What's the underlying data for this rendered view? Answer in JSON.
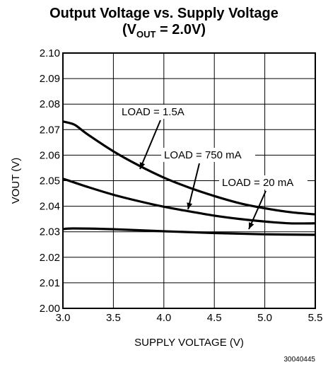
{
  "chart_data": {
    "type": "line",
    "title": "Output Voltage vs. Supply Voltage",
    "subtitle_prefix": "(V",
    "subtitle_sub": "OUT",
    "subtitle_suffix": " = 2.0V)",
    "xlabel": "SUPPLY VOLTAGE (V)",
    "ylabel": "VOUT (V)",
    "xlim": [
      3.0,
      5.5
    ],
    "ylim": [
      2.0,
      2.1
    ],
    "x_ticks": [
      3.0,
      3.5,
      4.0,
      4.5,
      5.0,
      5.5
    ],
    "x_tick_labels": [
      "3.0",
      "3.5",
      "4.0",
      "4.5",
      "5.0",
      "5.5"
    ],
    "y_ticks": [
      2.0,
      2.01,
      2.02,
      2.03,
      2.04,
      2.05,
      2.06,
      2.07,
      2.08,
      2.09,
      2.1
    ],
    "y_tick_labels": [
      "2.00",
      "2.01",
      "2.02",
      "2.03",
      "2.04",
      "2.05",
      "2.06",
      "2.07",
      "2.08",
      "2.09",
      "2.10"
    ],
    "grid": true,
    "series": [
      {
        "name": "LOAD = 1.5A",
        "x": [
          3.0,
          3.1,
          3.15,
          3.25,
          3.5,
          3.75,
          4.0,
          4.25,
          4.5,
          4.75,
          5.0,
          5.25,
          5.5
        ],
        "y": [
          2.0732,
          2.0722,
          2.071,
          2.068,
          2.0615,
          2.056,
          2.0512,
          2.0473,
          2.044,
          2.0412,
          2.0392,
          2.0377,
          2.0368
        ]
      },
      {
        "name": "LOAD = 750 mA",
        "x": [
          3.0,
          3.25,
          3.5,
          3.75,
          4.0,
          4.25,
          4.5,
          4.75,
          5.0,
          5.25,
          5.5
        ],
        "y": [
          2.0508,
          2.0475,
          2.0445,
          2.042,
          2.0398,
          2.038,
          2.0363,
          2.035,
          2.034,
          2.0333,
          2.0333
        ]
      },
      {
        "name": "LOAD = 20 mA",
        "x": [
          3.0,
          3.1,
          3.5,
          4.0,
          4.5,
          5.0,
          5.5
        ],
        "y": [
          2.031,
          2.0313,
          2.031,
          2.0302,
          2.0295,
          2.029,
          2.0288
        ]
      }
    ],
    "annotations": [
      {
        "text": "LOAD = 1.5A",
        "series": 0
      },
      {
        "text": "LOAD = 750 mA",
        "series": 1
      },
      {
        "text": "LOAD = 20 mA",
        "series": 2
      }
    ]
  },
  "figure_id": "30040445"
}
